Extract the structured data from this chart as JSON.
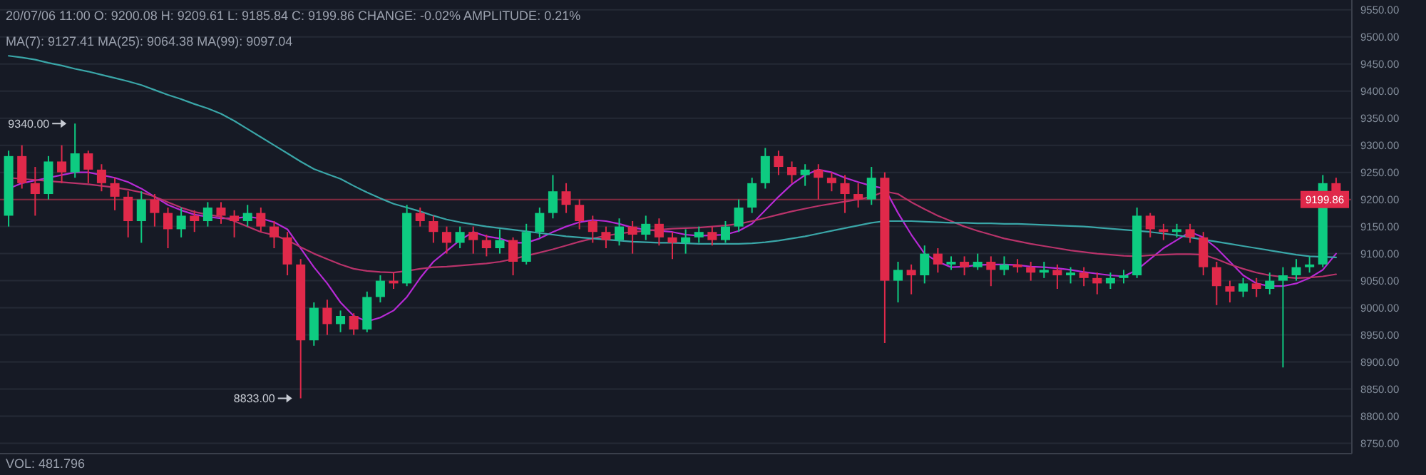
{
  "chart_data": {
    "type": "candlestick",
    "categories": [
      null,
      null,
      null,
      null,
      null,
      null,
      null,
      null,
      null,
      null,
      null,
      null,
      null,
      null,
      null,
      null,
      null,
      null,
      null,
      null,
      null,
      null,
      null,
      null,
      null,
      null,
      null,
      null,
      null,
      null,
      null,
      null,
      null,
      null,
      null,
      null,
      null,
      null,
      null,
      null,
      null,
      null,
      null,
      null,
      null,
      null,
      null,
      null,
      null,
      null,
      null,
      null,
      null,
      null,
      null,
      null,
      null,
      null,
      null,
      null,
      null,
      null,
      null,
      null,
      null,
      null,
      null,
      null,
      null,
      null,
      null,
      null,
      null,
      null,
      null,
      null,
      null,
      null,
      null,
      null,
      null,
      null,
      null,
      null,
      null,
      null,
      null,
      null,
      null,
      null,
      null,
      null,
      null,
      null,
      null,
      null,
      null,
      null,
      null,
      null,
      null
    ],
    "ohlc": [
      [
        9170,
        9290,
        9150,
        9280
      ],
      [
        9280,
        9300,
        9220,
        9230
      ],
      [
        9230,
        9260,
        9170,
        9210
      ],
      [
        9210,
        9280,
        9200,
        9270
      ],
      [
        9270,
        9300,
        9230,
        9250
      ],
      [
        9250,
        9340,
        9240,
        9285
      ],
      [
        9285,
        9290,
        9230,
        9255
      ],
      [
        9255,
        9265,
        9215,
        9230
      ],
      [
        9230,
        9240,
        9180,
        9205
      ],
      [
        9205,
        9215,
        9130,
        9160
      ],
      [
        9160,
        9215,
        9120,
        9200
      ],
      [
        9200,
        9210,
        9150,
        9175
      ],
      [
        9175,
        9185,
        9110,
        9145
      ],
      [
        9145,
        9185,
        9130,
        9170
      ],
      [
        9170,
        9180,
        9140,
        9160
      ],
      [
        9160,
        9195,
        9150,
        9185
      ],
      [
        9185,
        9195,
        9155,
        9170
      ],
      [
        9170,
        9180,
        9130,
        9160
      ],
      [
        9160,
        9190,
        9150,
        9175
      ],
      [
        9175,
        9185,
        9140,
        9150
      ],
      [
        9150,
        9160,
        9110,
        9130
      ],
      [
        9130,
        9140,
        9060,
        9080
      ],
      [
        9080,
        9090,
        8833,
        8940
      ],
      [
        8940,
        9010,
        8930,
        9000
      ],
      [
        9000,
        9015,
        8950,
        8970
      ],
      [
        8970,
        8995,
        8955,
        8985
      ],
      [
        8985,
        8990,
        8950,
        8960
      ],
      [
        8960,
        9030,
        8955,
        9020
      ],
      [
        9020,
        9060,
        9010,
        9050
      ],
      [
        9050,
        9065,
        9035,
        9045
      ],
      [
        9045,
        9190,
        9040,
        9175
      ],
      [
        9175,
        9185,
        9150,
        9160
      ],
      [
        9160,
        9170,
        9120,
        9140
      ],
      [
        9140,
        9150,
        9100,
        9120
      ],
      [
        9120,
        9150,
        9110,
        9140
      ],
      [
        9140,
        9150,
        9100,
        9125
      ],
      [
        9125,
        9135,
        9095,
        9110
      ],
      [
        9110,
        9145,
        9100,
        9125
      ],
      [
        9125,
        9130,
        9060,
        9085
      ],
      [
        9085,
        9155,
        9080,
        9140
      ],
      [
        9140,
        9185,
        9130,
        9175
      ],
      [
        9175,
        9245,
        9165,
        9215
      ],
      [
        9215,
        9230,
        9175,
        9190
      ],
      [
        9190,
        9200,
        9145,
        9160
      ],
      [
        9160,
        9170,
        9120,
        9140
      ],
      [
        9140,
        9150,
        9110,
        9125
      ],
      [
        9125,
        9165,
        9115,
        9150
      ],
      [
        9150,
        9160,
        9100,
        9135
      ],
      [
        9135,
        9170,
        9125,
        9155
      ],
      [
        9155,
        9165,
        9115,
        9130
      ],
      [
        9130,
        9140,
        9090,
        9120
      ],
      [
        9120,
        9145,
        9100,
        9130
      ],
      [
        9130,
        9150,
        9120,
        9140
      ],
      [
        9140,
        9150,
        9115,
        9125
      ],
      [
        9125,
        9160,
        9120,
        9150
      ],
      [
        9150,
        9200,
        9140,
        9185
      ],
      [
        9185,
        9240,
        9175,
        9230
      ],
      [
        9230,
        9295,
        9220,
        9280
      ],
      [
        9280,
        9290,
        9245,
        9260
      ],
      [
        9260,
        9270,
        9230,
        9245
      ],
      [
        9245,
        9265,
        9225,
        9255
      ],
      [
        9255,
        9265,
        9200,
        9240
      ],
      [
        9240,
        9250,
        9215,
        9230
      ],
      [
        9230,
        9245,
        9175,
        9210
      ],
      [
        9210,
        9230,
        9185,
        9200
      ],
      [
        9200,
        9260,
        9190,
        9240
      ],
      [
        9240,
        9250,
        8935,
        9050
      ],
      [
        9050,
        9085,
        9010,
        9070
      ],
      [
        9070,
        9080,
        9025,
        9060
      ],
      [
        9060,
        9115,
        9045,
        9100
      ],
      [
        9100,
        9110,
        9065,
        9080
      ],
      [
        9080,
        9095,
        9070,
        9085
      ],
      [
        9085,
        9095,
        9060,
        9075
      ],
      [
        9075,
        9100,
        9070,
        9085
      ],
      [
        9085,
        9095,
        9040,
        9070
      ],
      [
        9070,
        9095,
        9060,
        9080
      ],
      [
        9080,
        9090,
        9065,
        9075
      ],
      [
        9075,
        9085,
        9050,
        9065
      ],
      [
        9065,
        9085,
        9055,
        9070
      ],
      [
        9070,
        9080,
        9035,
        9060
      ],
      [
        9060,
        9075,
        9045,
        9065
      ],
      [
        9065,
        9075,
        9040,
        9055
      ],
      [
        9055,
        9065,
        9025,
        9045
      ],
      [
        9045,
        9065,
        9035,
        9055
      ],
      [
        9055,
        9070,
        9045,
        9060
      ],
      [
        9060,
        9185,
        9055,
        9170
      ],
      [
        9170,
        9175,
        9130,
        9145
      ],
      [
        9145,
        9155,
        9125,
        9140
      ],
      [
        9140,
        9155,
        9130,
        9145
      ],
      [
        9145,
        9155,
        9120,
        9130
      ],
      [
        9130,
        9140,
        9060,
        9075
      ],
      [
        9075,
        9085,
        9005,
        9040
      ],
      [
        9040,
        9050,
        9010,
        9030
      ],
      [
        9030,
        9055,
        9020,
        9045
      ],
      [
        9045,
        9055,
        9020,
        9035
      ],
      [
        9035,
        9065,
        9025,
        9050
      ],
      [
        9050,
        9075,
        8890,
        9060
      ],
      [
        9060,
        9090,
        9050,
        9075
      ],
      [
        9075,
        9095,
        9065,
        9080
      ],
      [
        9080,
        9245,
        9075,
        9230
      ],
      [
        9230,
        9240,
        9185,
        9200
      ]
    ],
    "series": [
      {
        "type": "line",
        "color": "#b72ad6",
        "values": [
          9220,
          9230,
          9235,
          9240,
          9245,
          9250,
          9250,
          9245,
          9240,
          9232,
          9220,
          9205,
          9190,
          9180,
          9172,
          9168,
          9165,
          9165,
          9168,
          9165,
          9158,
          9145,
          9110,
          9075,
          9045,
          9010,
          8985,
          8975,
          8982,
          8995,
          9020,
          9055,
          9085,
          9105,
          9125,
          9140,
          9132,
          9128,
          9120,
          9120,
          9128,
          9140,
          9150,
          9158,
          9162,
          9160,
          9155,
          9148,
          9144,
          9142,
          9140,
          9135,
          9133,
          9134,
          9135,
          9142,
          9155,
          9180,
          9205,
          9228,
          9245,
          9255,
          9250,
          9240,
          9232,
          9225,
          9220,
          9175,
          9135,
          9100,
          9085,
          9075,
          9076,
          9079,
          9080,
          9080,
          9079,
          9076,
          9075,
          9073,
          9070,
          9066,
          9063,
          9060,
          9058,
          9070,
          9090,
          9110,
          9125,
          9140,
          9130,
          9110,
          9085,
          9060,
          9045,
          9040,
          9040,
          9045,
          9055,
          9070,
          9100
        ]
      },
      {
        "type": "line",
        "color": "#b8336a",
        "values": [
          9240,
          9238,
          9236,
          9234,
          9232,
          9230,
          9228,
          9225,
          9222,
          9218,
          9213,
          9205,
          9195,
          9185,
          9177,
          9172,
          9168,
          9160,
          9150,
          9140,
          9134,
          9125,
          9112,
          9100,
          9090,
          9080,
          9072,
          9068,
          9066,
          9065,
          9068,
          9072,
          9075,
          9076,
          9078,
          9080,
          9082,
          9085,
          9090,
          9096,
          9102,
          9108,
          9115,
          9122,
          9128,
          9133,
          9137,
          9140,
          9142,
          9144,
          9146,
          9147,
          9148,
          9150,
          9152,
          9155,
          9160,
          9166,
          9172,
          9178,
          9183,
          9188,
          9192,
          9196,
          9200,
          9205,
          9215,
          9210,
          9195,
          9182,
          9170,
          9160,
          9150,
          9142,
          9135,
          9128,
          9123,
          9118,
          9114,
          9110,
          9106,
          9103,
          9100,
          9098,
          9096,
          9095,
          9097,
          9098,
          9099,
          9099,
          9098,
          9090,
          9080,
          9072,
          9065,
          9060,
          9057,
          9055,
          9056,
          9058,
          9062
        ]
      },
      {
        "type": "line",
        "color": "#3aa6a8",
        "values": [
          9465,
          9462,
          9458,
          9452,
          9447,
          9441,
          9436,
          9430,
          9424,
          9418,
          9411,
          9402,
          9393,
          9385,
          9376,
          9368,
          9358,
          9345,
          9330,
          9315,
          9300,
          9285,
          9270,
          9256,
          9247,
          9238,
          9225,
          9213,
          9202,
          9192,
          9185,
          9178,
          9170,
          9163,
          9158,
          9154,
          9150,
          9147,
          9144,
          9141,
          9138,
          9135,
          9132,
          9130,
          9128,
          9126,
          9124,
          9122,
          9121,
          9120,
          9120,
          9119,
          9118,
          9118,
          9118,
          9118,
          9119,
          9121,
          9124,
          9128,
          9132,
          9137,
          9142,
          9147,
          9152,
          9157,
          9160,
          9160,
          9160,
          9159,
          9158,
          9157,
          9157,
          9156,
          9156,
          9155,
          9155,
          9154,
          9153,
          9152,
          9151,
          9150,
          9148,
          9146,
          9144,
          9142,
          9140,
          9137,
          9134,
          9130,
          9126,
          9122,
          9118,
          9114,
          9110,
          9106,
          9102,
          9098,
          9095,
          9094,
          9093
        ]
      }
    ],
    "ylim": [
      8731,
      9568
    ],
    "yticks": [
      {
        "value": 8750,
        "label": "8750.00"
      },
      {
        "value": 8800,
        "label": "8800.00"
      },
      {
        "value": 8850,
        "label": "8850.00"
      },
      {
        "value": 8900,
        "label": "8900.00"
      },
      {
        "value": 8950,
        "label": "8950.00"
      },
      {
        "value": 9000,
        "label": "9000.00"
      },
      {
        "value": 9050,
        "label": "9050.00"
      },
      {
        "value": 9100,
        "label": "9100.00"
      },
      {
        "value": 9150,
        "label": "9150.00"
      },
      {
        "value": 9200,
        "label": "9200.00"
      },
      {
        "value": 9250,
        "label": "9250.00"
      },
      {
        "value": 9300,
        "label": "9300.00"
      },
      {
        "value": 9350,
        "label": "9350.00"
      },
      {
        "value": 9400,
        "label": "9400.00"
      },
      {
        "value": 9450,
        "label": "9450.00"
      },
      {
        "value": 9500,
        "label": "9500.00"
      },
      {
        "value": 9550,
        "label": "9550.00"
      }
    ],
    "grid": "y",
    "tick_labels": "y",
    "ref_lines": [
      {
        "axis": "y",
        "value": 9199.86,
        "label": "9199.86",
        "color": "#e0294a"
      }
    ],
    "annotations": [
      "20/07/06 11:00 O: 9200.08 H: 9209.61 L: 9185.84 C: 9199.86 CHANGE: -0.02% AMPLITUDE: 0.21%",
      "MA(7): 9127.41 MA(25): 9064.38 MA(99): 9097.04",
      "VOL: 481.796",
      "9340.00",
      "8833.00"
    ]
  }
}
